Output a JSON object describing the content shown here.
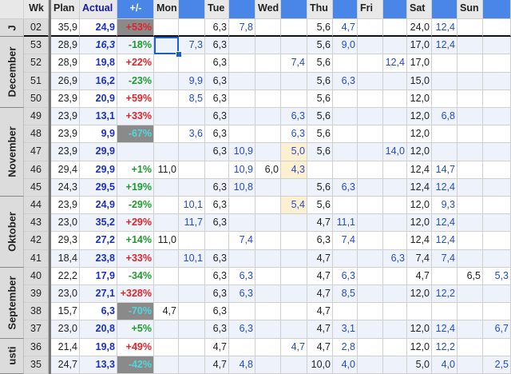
{
  "header": {
    "wk": "Wk",
    "plan": "Plan",
    "actual": "Actual",
    "diff": "+/-",
    "days": [
      "Mon",
      "Tue",
      "Wed",
      "Thu",
      "Fri",
      "Sat",
      "Sun"
    ]
  },
  "months": [
    {
      "name": "J",
      "rows": 1
    },
    {
      "name": "December",
      "rows": 4
    },
    {
      "name": "November",
      "rows": 5
    },
    {
      "name": "Oktober",
      "rows": 4
    },
    {
      "name": "September",
      "rows": 4
    },
    {
      "name": "usti",
      "rows": 2
    }
  ],
  "rows": [
    {
      "wk": "02",
      "plan": "35,9",
      "actual": "24,9",
      "diff": "+53%",
      "dtype": "pos",
      "grey": true,
      "days": [
        "",
        "",
        "6,3",
        "7,8",
        "",
        "",
        "5,6",
        "4,7",
        "",
        "",
        "24,0",
        "12,4",
        "",
        ""
      ]
    },
    {
      "wk": "53",
      "plan": "28,9",
      "actual": "16,3",
      "diff": "-18%",
      "dtype": "neg",
      "italic": true,
      "days": [
        "",
        "7,3",
        "6,3",
        "",
        "",
        "",
        "5,6",
        "9,0",
        "",
        "",
        "17,0",
        "12,4",
        "",
        ""
      ]
    },
    {
      "wk": "52",
      "plan": "28,9",
      "actual": "19,8",
      "diff": "+22%",
      "dtype": "pos",
      "days": [
        "",
        "",
        "6,3",
        "",
        "",
        "7,4",
        "5,6",
        "",
        "",
        "12,4",
        "17,0",
        "",
        "",
        ""
      ]
    },
    {
      "wk": "51",
      "plan": "26,9",
      "actual": "16,2",
      "diff": "-23%",
      "dtype": "neg",
      "days": [
        "",
        "9,9",
        "6,3",
        "",
        "",
        "",
        "5,6",
        "6,3",
        "",
        "",
        "15,0",
        "",
        "",
        ""
      ]
    },
    {
      "wk": "50",
      "plan": "23,9",
      "actual": "20,9",
      "diff": "+59%",
      "dtype": "pos",
      "days": [
        "",
        "8,5",
        "6,3",
        "",
        "",
        "",
        "5,6",
        "",
        "",
        "",
        "12,0",
        "",
        "",
        ""
      ]
    },
    {
      "wk": "49",
      "plan": "23,9",
      "actual": "13,1",
      "diff": "+33%",
      "dtype": "pos",
      "days": [
        "",
        "",
        "6,3",
        "",
        "",
        "6,3",
        "5,6",
        "",
        "",
        "",
        "12,0",
        "6,8",
        "",
        ""
      ]
    },
    {
      "wk": "48",
      "plan": "23,9",
      "actual": "9,9",
      "diff": "-67%",
      "dtype": "neg",
      "grey": true,
      "days": [
        "",
        "3,6",
        "6,3",
        "",
        "",
        "6,3",
        "5,6",
        "",
        "",
        "",
        "12,0",
        "",
        "",
        ""
      ]
    },
    {
      "wk": "47",
      "plan": "23,9",
      "actual": "29,9",
      "diff": "",
      "dtype": "neg",
      "days": [
        "",
        "",
        "6,3",
        "10,9",
        "",
        "5,0",
        "5,6",
        "",
        "",
        "14,0",
        "12,0",
        "",
        "",
        ""
      ]
    },
    {
      "wk": "46",
      "plan": "29,4",
      "actual": "29,9",
      "diff": "+1%",
      "dtype": "neg",
      "days": [
        "11,0",
        "",
        "",
        "10,9",
        "6,0",
        "4,3",
        "",
        "",
        "",
        "",
        "12,4",
        "14,7",
        "",
        ""
      ]
    },
    {
      "wk": "45",
      "plan": "24,3",
      "actual": "29,5",
      "diff": "+19%",
      "dtype": "neg",
      "days": [
        "",
        "",
        "6,3",
        "10,8",
        "",
        "",
        "5,6",
        "6,3",
        "",
        "",
        "12,4",
        "12,4",
        "",
        ""
      ]
    },
    {
      "wk": "44",
      "plan": "23,9",
      "actual": "24,9",
      "diff": "-29%",
      "dtype": "neg",
      "days": [
        "",
        "10,1",
        "6,3",
        "",
        "",
        "5,4",
        "5,6",
        "",
        "",
        "",
        "12,0",
        "9,3",
        "",
        ""
      ]
    },
    {
      "wk": "43",
      "plan": "23,0",
      "actual": "35,2",
      "diff": "+29%",
      "dtype": "pos",
      "days": [
        "",
        "11,7",
        "6,3",
        "",
        "",
        "",
        "4,7",
        "11,1",
        "",
        "",
        "12,0",
        "12,4",
        "",
        ""
      ]
    },
    {
      "wk": "42",
      "plan": "29,3",
      "actual": "27,2",
      "diff": "+14%",
      "dtype": "neg",
      "days": [
        "11,0",
        "",
        "",
        "7,4",
        "",
        "",
        "6,3",
        "7,4",
        "",
        "",
        "12,4",
        "12,4",
        "",
        ""
      ]
    },
    {
      "wk": "41",
      "plan": "18,4",
      "actual": "23,8",
      "diff": "+33%",
      "dtype": "pos",
      "days": [
        "",
        "10,1",
        "6,3",
        "",
        "",
        "",
        "4,7",
        "",
        "",
        "6,3",
        "7,4",
        "7,4",
        "",
        ""
      ]
    },
    {
      "wk": "40",
      "plan": "22,2",
      "actual": "17,9",
      "diff": "-34%",
      "dtype": "neg",
      "days": [
        "",
        "",
        "6,3",
        "6,3",
        "",
        "",
        "4,7",
        "6,3",
        "",
        "",
        "4,7",
        "",
        "6,5",
        "5,3"
      ]
    },
    {
      "wk": "39",
      "plan": "23,0",
      "actual": "27,1",
      "diff": "+328%",
      "dtype": "pos",
      "days": [
        "",
        "",
        "6,3",
        "6,3",
        "",
        "",
        "4,7",
        "8,5",
        "",
        "",
        "12,0",
        "12,2",
        "",
        ""
      ]
    },
    {
      "wk": "38",
      "plan": "15,7",
      "actual": "6,3",
      "diff": "-70%",
      "dtype": "neg",
      "grey": true,
      "days": [
        "4,7",
        "",
        "6,3",
        "",
        "",
        "",
        "4,7",
        "",
        "",
        "",
        "",
        "",
        "",
        ""
      ]
    },
    {
      "wk": "37",
      "plan": "23,0",
      "actual": "20,8",
      "diff": "+5%",
      "dtype": "neg",
      "days": [
        "",
        "",
        "6,3",
        "6,3",
        "",
        "",
        "4,7",
        "3,1",
        "",
        "",
        "12,0",
        "12,4",
        "",
        "6,7"
      ]
    },
    {
      "wk": "36",
      "plan": "21,4",
      "actual": "19,8",
      "diff": "+49%",
      "dtype": "pos",
      "days": [
        "",
        "",
        "4,7",
        "",
        "",
        "4,7",
        "4,7",
        "2,8",
        "",
        "",
        "12,0",
        "12,2",
        "",
        ""
      ]
    },
    {
      "wk": "35",
      "plan": "24,7",
      "actual": "13,3",
      "diff": "-42%",
      "dtype": "neg",
      "grey": true,
      "days": [
        "",
        "",
        "4,7",
        "4,8",
        "",
        "",
        "10,0",
        "4,0",
        "",
        "",
        "5,0",
        "4,0",
        "",
        "2,5"
      ]
    }
  ]
}
